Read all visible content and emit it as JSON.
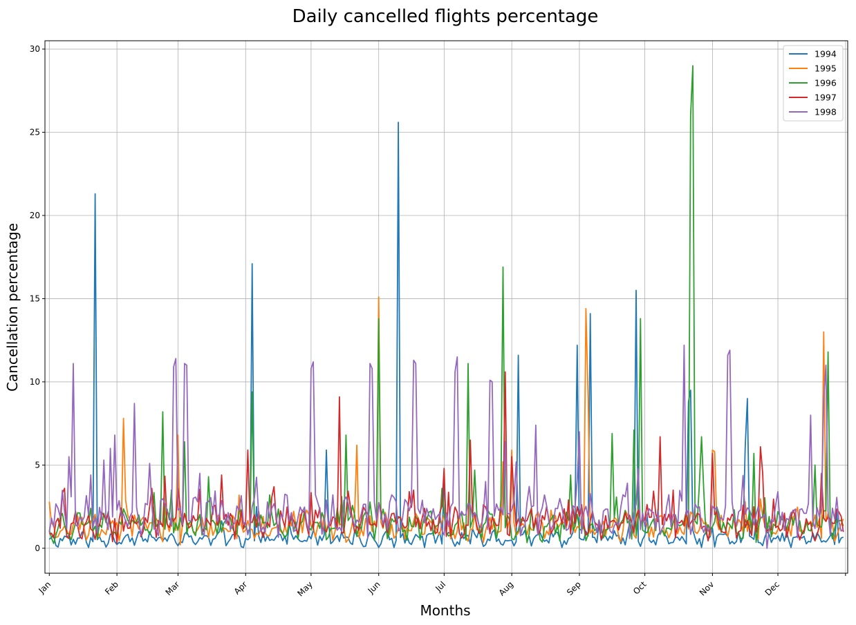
{
  "chart_data": {
    "type": "line",
    "title": "Daily cancelled flights percentage",
    "xlabel": "Months",
    "ylabel": "Cancellation percentage",
    "x_tick_labels": [
      "Jan",
      "Feb",
      "Mar",
      "Apr",
      "May",
      "Jun",
      "Jul",
      "Aug",
      "Sep",
      "Oct",
      "Nov",
      "Dec"
    ],
    "x_tick_days": [
      1,
      32,
      60,
      91,
      121,
      152,
      182,
      213,
      244,
      274,
      305,
      335
    ],
    "xlim": [
      -1,
      367
    ],
    "ylim": [
      -1.5,
      30.5
    ],
    "y_ticks": [
      0,
      5,
      10,
      15,
      20,
      25,
      30
    ],
    "grid": true,
    "legend_position": "top-right",
    "series": [
      {
        "name": "1994",
        "color": "#1f77b4",
        "baseline": 0.55,
        "amplitude": 0.35,
        "seed": 11,
        "peaks": [
          [
            22,
            21.3
          ],
          [
            31,
            0.4
          ],
          [
            94,
            17.1
          ],
          [
            96,
            2.5
          ],
          [
            128,
            5.9
          ],
          [
            161,
            25.6
          ],
          [
            182,
            4.3
          ],
          [
            216,
            11.6
          ],
          [
            243,
            12.2
          ],
          [
            249,
            14.1
          ],
          [
            270,
            15.5
          ],
          [
            295,
            9.5
          ],
          [
            294,
            8.8
          ],
          [
            321,
            9.0
          ],
          [
            320,
            6.0
          ],
          [
            362,
            2.2
          ]
        ]
      },
      {
        "name": "1995",
        "color": "#ff7f0e",
        "baseline": 1.3,
        "amplitude": 0.6,
        "seed": 23,
        "peaks": [
          [
            1,
            2.8
          ],
          [
            35,
            7.8
          ],
          [
            60,
            6.8
          ],
          [
            61,
            0.2
          ],
          [
            142,
            6.2
          ],
          [
            152,
            15.1
          ],
          [
            209,
            5.2
          ],
          [
            213,
            5.9
          ],
          [
            247,
            14.4
          ],
          [
            248,
            9.0
          ],
          [
            305,
            5.9
          ],
          [
            306,
            5.8
          ],
          [
            356,
            13.0
          ],
          [
            323,
            1.0
          ]
        ]
      },
      {
        "name": "1996",
        "color": "#2ca02c",
        "baseline": 1.35,
        "amplitude": 0.7,
        "seed": 37,
        "peaks": [
          [
            53,
            8.2
          ],
          [
            63,
            6.4
          ],
          [
            74,
            4.3
          ],
          [
            94,
            9.4
          ],
          [
            137,
            6.8
          ],
          [
            152,
            13.8
          ],
          [
            193,
            11.1
          ],
          [
            196,
            4.7
          ],
          [
            209,
            16.9
          ],
          [
            240,
            4.4
          ],
          [
            259,
            6.9
          ],
          [
            269,
            7.1
          ],
          [
            272,
            13.8
          ],
          [
            295,
            26.0
          ],
          [
            296,
            29.0
          ],
          [
            300,
            6.7
          ],
          [
            324,
            5.7
          ],
          [
            358,
            11.8
          ],
          [
            352,
            5.0
          ]
        ]
      },
      {
        "name": "1997",
        "color": "#d62728",
        "baseline": 1.5,
        "amplitude": 0.7,
        "seed": 49,
        "peaks": [
          [
            7,
            3.3
          ],
          [
            8,
            3.6
          ],
          [
            32,
            0.3
          ],
          [
            48,
            3.6
          ],
          [
            60,
            3.6
          ],
          [
            80,
            4.4
          ],
          [
            92,
            5.9
          ],
          [
            104,
            3.7
          ],
          [
            134,
            9.1
          ],
          [
            166,
            3.4
          ],
          [
            182,
            4.8
          ],
          [
            194,
            6.5
          ],
          [
            210,
            10.6
          ],
          [
            213,
            5.5
          ],
          [
            281,
            6.7
          ],
          [
            305,
            5.7
          ],
          [
            327,
            6.1
          ],
          [
            355,
            4.5
          ]
        ]
      },
      {
        "name": "1998",
        "color": "#9467bd",
        "baseline": 1.9,
        "amplitude": 0.9,
        "seed": 61,
        "peaks": [
          [
            10,
            5.5
          ],
          [
            12,
            11.1
          ],
          [
            20,
            4.4
          ],
          [
            26,
            5.3
          ],
          [
            29,
            6.0
          ],
          [
            31,
            6.8
          ],
          [
            40,
            8.7
          ],
          [
            47,
            5.1
          ],
          [
            58,
            10.9
          ],
          [
            59,
            11.4
          ],
          [
            63,
            11.1
          ],
          [
            64,
            11.0
          ],
          [
            70,
            4.5
          ],
          [
            121,
            10.8
          ],
          [
            122,
            11.2
          ],
          [
            128,
            2.9
          ],
          [
            148,
            11.1
          ],
          [
            149,
            10.8
          ],
          [
            168,
            11.3
          ],
          [
            169,
            11.1
          ],
          [
            187,
            10.6
          ],
          [
            188,
            11.5
          ],
          [
            203,
            10.1
          ],
          [
            204,
            10.0
          ],
          [
            210,
            6.4
          ],
          [
            224,
            7.4
          ],
          [
            244,
            7.0
          ],
          [
            275,
            2.0
          ],
          [
            292,
            12.2
          ],
          [
            312,
            11.6
          ],
          [
            313,
            11.9
          ],
          [
            350,
            8.0
          ],
          [
            356,
            8.9
          ],
          [
            357,
            11.0
          ],
          [
            335,
            3.4
          ],
          [
            330,
            0.0
          ]
        ]
      }
    ]
  }
}
